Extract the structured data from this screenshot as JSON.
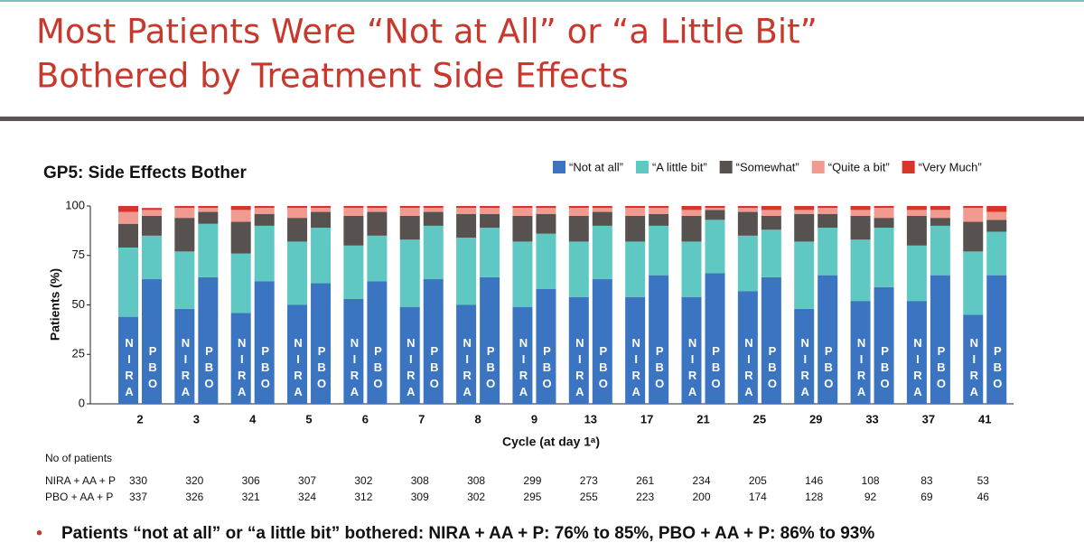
{
  "header": {
    "title_lines": [
      "Most Patients Were “Not at All” or “a Little Bit”",
      "Bothered by Treatment Side Effects"
    ]
  },
  "chart_data": {
    "type": "grouped_stacked_bar",
    "title": "GP5: Side Effects Bother",
    "y_label": "Patients (%)",
    "x_label": "Cycle (at day 1ᵃ)",
    "categories": [
      "2",
      "3",
      "4",
      "5",
      "6",
      "7",
      "8",
      "9",
      "13",
      "17",
      "21",
      "25",
      "29",
      "33",
      "37",
      "41"
    ],
    "groups": [
      "NIRA",
      "PBO"
    ],
    "ylim": [
      0,
      100
    ],
    "yticks": [
      0,
      25,
      50,
      75,
      100
    ],
    "series": [
      {
        "name": "“Not at all”",
        "color": "#3b74c0",
        "values": [
          [
            44,
            48,
            46,
            50,
            53,
            49,
            50,
            49,
            54,
            54,
            54,
            57,
            48,
            52,
            52,
            45
          ],
          [
            63,
            64,
            62,
            61,
            62,
            63,
            64,
            58,
            63,
            65,
            66,
            64,
            65,
            59,
            65,
            65
          ]
        ]
      },
      {
        "name": "“A little bit”",
        "color": "#5fc8c2",
        "values": [
          [
            35,
            29,
            30,
            32,
            27,
            34,
            34,
            33,
            28,
            28,
            28,
            28,
            34,
            31,
            28,
            32
          ],
          [
            22,
            27,
            28,
            28,
            23,
            27,
            25,
            28,
            27,
            25,
            27,
            24,
            24,
            30,
            25,
            22
          ]
        ]
      },
      {
        "name": "“Somewhat”",
        "color": "#57514f",
        "values": [
          [
            12,
            17,
            16,
            12,
            15,
            12,
            12,
            13,
            13,
            13,
            13,
            12,
            14,
            12,
            15,
            15
          ],
          [
            10,
            6,
            6,
            8,
            12,
            7,
            7,
            10,
            7,
            6,
            5,
            7,
            7,
            5,
            4,
            6
          ]
        ]
      },
      {
        "name": "“Quite a bit”",
        "color": "#f19b90",
        "values": [
          [
            6,
            5,
            6,
            5,
            4,
            4,
            3,
            4,
            4,
            4,
            3,
            2,
            2,
            3,
            3,
            7
          ],
          [
            3,
            2,
            3,
            2,
            2,
            2,
            3,
            3,
            2,
            3,
            1,
            3,
            3,
            5,
            4,
            4
          ]
        ]
      },
      {
        "name": "“Very Much”",
        "color": "#d9342a",
        "values": [
          [
            3,
            1,
            2,
            1,
            1,
            1,
            1,
            1,
            1,
            1,
            2,
            1,
            2,
            2,
            2,
            1
          ],
          [
            1,
            1,
            1,
            1,
            1,
            1,
            1,
            1,
            1,
            1,
            1,
            2,
            1,
            1,
            2,
            3
          ]
        ]
      }
    ]
  },
  "patients_table": {
    "heading": "No of patients",
    "rows": [
      {
        "label": "NIRA + AA + P",
        "counts": [
          330,
          320,
          306,
          307,
          302,
          308,
          308,
          299,
          273,
          261,
          234,
          205,
          146,
          108,
          83,
          53
        ]
      },
      {
        "label": "PBO + AA + P",
        "counts": [
          337,
          326,
          321,
          324,
          312,
          309,
          302,
          295,
          255,
          223,
          200,
          174,
          128,
          92,
          69,
          46
        ]
      }
    ]
  },
  "bullet": "Patients “not at all” or “a little bit” bothered: NIRA + AA + P: 76% to 85%, PBO + AA + P: 86% to 93%"
}
